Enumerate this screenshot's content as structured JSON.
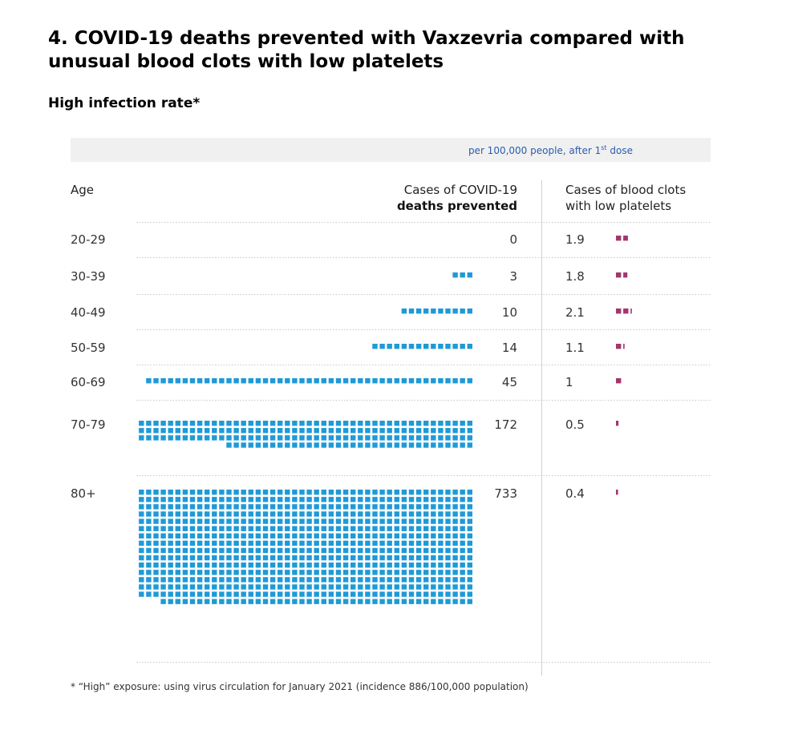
{
  "title": "4.  COVID-19 deaths prevented with Vaxzevria compared with unusual blood clots with low platelets",
  "subtitle": "High infection rate*",
  "unit_prefix": "per 100,000 people, after 1",
  "unit_sup": "st",
  "unit_suffix": " dose",
  "headers": {
    "age": "Age",
    "deaths_line1": "Cases of COVID-19",
    "deaths_line2": "deaths prevented",
    "clots_line1": "Cases of blood clots",
    "clots_line2": "with low platelets"
  },
  "colors": {
    "deaths": "#1f9ad6",
    "clots": "#a3366f",
    "grid": "#c8c8c8"
  },
  "footnote": "* “High” exposure: using virus circulation for January 2021 (incidence 886/100,000 population)",
  "chart_data": {
    "type": "table",
    "columns": [
      "Age",
      "Cases of COVID-19 deaths prevented",
      "Cases of blood clots with low platelets"
    ],
    "rows": [
      {
        "age": "20-29",
        "deaths": 0,
        "deaths_label": "0",
        "clots": 1.9,
        "clots_label": "1.9"
      },
      {
        "age": "30-39",
        "deaths": 3,
        "deaths_label": "3",
        "clots": 1.8,
        "clots_label": "1.8"
      },
      {
        "age": "40-49",
        "deaths": 10,
        "deaths_label": "10",
        "clots": 2.1,
        "clots_label": "2.1"
      },
      {
        "age": "50-59",
        "deaths": 14,
        "deaths_label": "14",
        "clots": 1.1,
        "clots_label": "1.1"
      },
      {
        "age": "60-69",
        "deaths": 45,
        "deaths_label": "45",
        "clots": 1,
        "clots_label": "1"
      },
      {
        "age": "70-79",
        "deaths": 172,
        "deaths_label": "172",
        "clots": 0.5,
        "clots_label": "0.5"
      },
      {
        "age": "80+",
        "deaths": 733,
        "deaths_label": "733",
        "clots": 0.4,
        "clots_label": "0.4"
      }
    ]
  }
}
